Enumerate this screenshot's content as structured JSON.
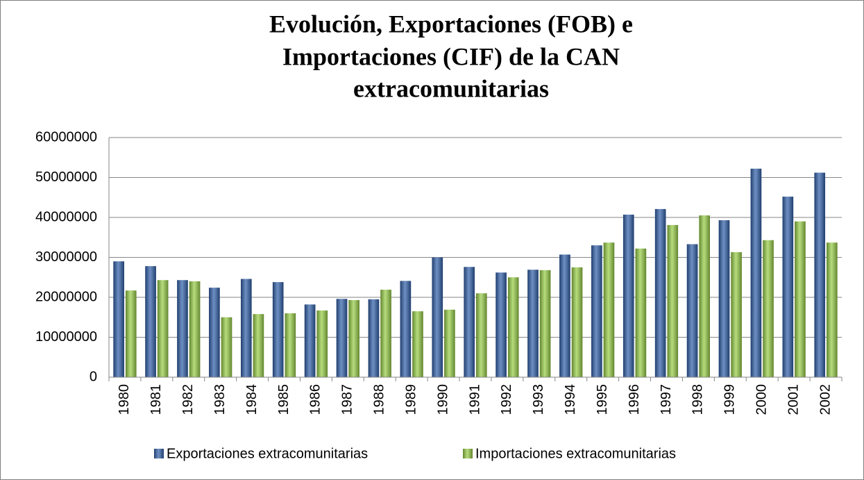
{
  "chart_data": {
    "type": "bar",
    "title": [
      "Evolución, Exportaciones (FOB) e",
      "Importaciones (CIF) de la CAN",
      "extracomunitarias"
    ],
    "categories": [
      "1980",
      "1981",
      "1982",
      "1983",
      "1984",
      "1985",
      "1986",
      "1987",
      "1988",
      "1989",
      "1990",
      "1991",
      "1992",
      "1993",
      "1994",
      "1995",
      "1996",
      "1997",
      "1998",
      "1999",
      "2000",
      "2001",
      "2002"
    ],
    "series": [
      {
        "name": "Exportaciones extracomunitarias",
        "color": "#2f5ea8",
        "values": [
          29000000,
          27800000,
          24300000,
          22400000,
          24600000,
          23800000,
          18200000,
          19600000,
          19500000,
          24100000,
          30000000,
          27600000,
          26200000,
          26900000,
          30700000,
          33000000,
          40700000,
          42100000,
          33300000,
          39300000,
          52200000,
          45200000,
          51200000
        ]
      },
      {
        "name": "Importaciones extracomunitarias",
        "color": "#96cc45",
        "values": [
          21700000,
          24300000,
          24000000,
          15000000,
          15800000,
          16000000,
          16700000,
          19300000,
          21900000,
          16500000,
          16900000,
          21000000,
          25000000,
          26800000,
          27500000,
          33700000,
          32200000,
          38100000,
          40500000,
          31300000,
          34300000,
          39000000,
          33700000
        ]
      }
    ],
    "ylim": [
      0,
      60000000
    ],
    "yticks": [
      0,
      10000000,
      20000000,
      30000000,
      40000000,
      50000000,
      60000000
    ],
    "grid": true,
    "legend": "bottom"
  }
}
